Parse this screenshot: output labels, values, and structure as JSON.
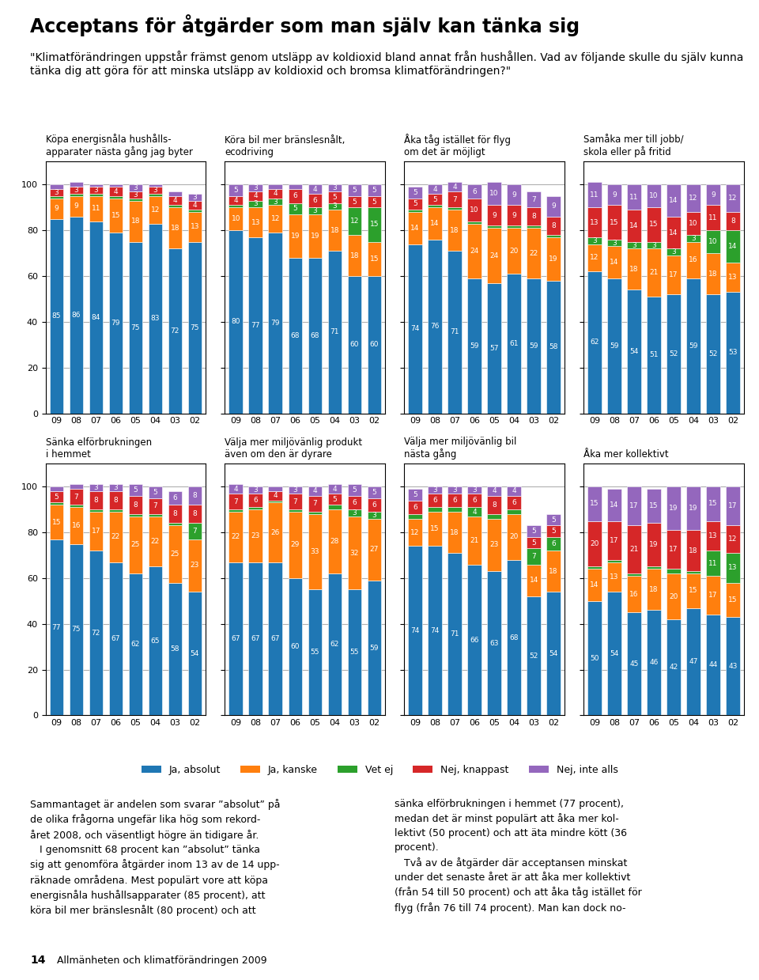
{
  "title": "Acceptans för åtgärder som man själv kan tänka sig",
  "subtitle": "\"Klimatförändringen uppstår främst genom utsläpp av koldioxid bland annat från hushållen. Vad av följande skulle du själv kunna tänka dig att göra för att minska utsläpp av koldioxid och bromsa klimatförändringen?\"",
  "annotations": [
    "Sammantaget är andelen som svarar ”absolut” på\nde olika frågorna ungefär lika hög som rekord-\nåret 2008, och väsentligt högre än tidigare år.\n   I genomsnitt 68 procent kan ”absolut” tänka\nsig att genomföra åtgärder inom 13 av de 14 upp-\nräknade områdena. Mest populärt vore att köpa\nenergisnåla hushållsapparater (85 procent), att\nköra bil mer bränslesnålt (80 procent) och att",
    "sänka elförbrukningen i hemmet (77 procent),\nmedan det är minst populärt att åka mer kol-\nlektivt (50 procent) och att äta mindre kött (36\nprocent).\n   Två av de åtgärder där acceptansen minskat\nunder det senaste året är att åka mer kollektivt\n(från 54 till 50 procent) och att åka tåg istället för\nflyg (från 76 till 74 procent). Man kan dock no-",
    "14",
    "Allmänheten och klimatförändringen 2009"
  ],
  "chart_data": [
    {
      "type": "bar",
      "stacked": true,
      "data_labels": true,
      "grid": true,
      "legend": "lower center",
      "title": "Köpa energisnåla hushålls-\napparater nästa gång jag byter",
      "categories": [
        "09",
        "08",
        "07",
        "06",
        "05",
        "04",
        "03",
        "02"
      ],
      "ylim": [
        0,
        110
      ],
      "yticks": [
        0,
        20,
        40,
        60,
        80,
        100
      ],
      "series": [
        {
          "name": "Ja, absolut",
          "color": "#1f77b4",
          "values": [
            85,
            86,
            84,
            79,
            75,
            83,
            72,
            75
          ]
        },
        {
          "name": "Ja, kanske",
          "color": "#ff7f0e",
          "values": [
            9,
            9,
            11,
            15,
            18,
            12,
            18,
            13
          ]
        },
        {
          "name": "Vet ej",
          "color": "#2ca02c",
          "values": [
            1,
            1,
            1,
            1,
            1,
            1,
            1,
            1
          ],
          "value_labels": [
            null,
            null,
            null,
            null,
            null,
            null,
            null,
            null
          ]
        },
        {
          "name": "Nej, knappast",
          "color": "#d62728",
          "values": [
            3,
            3,
            3,
            4,
            3,
            3,
            4,
            4
          ]
        },
        {
          "name": "Nej, inte alls",
          "color": "#9467bd",
          "values": [
            2,
            2,
            1,
            1,
            3,
            1,
            2,
            3
          ],
          "value_labels": [
            null,
            null,
            null,
            null,
            "3",
            null,
            null,
            "3"
          ]
        }
      ]
    },
    {
      "type": "bar",
      "stacked": true,
      "data_labels": true,
      "grid": true,
      "tick_labels": "x",
      "title": "Köra bil mer bränslesnålt,\necodriving",
      "categories": [
        "09",
        "08",
        "07",
        "06",
        "05",
        "04",
        "03",
        "02"
      ],
      "ylim": [
        0,
        110
      ],
      "yticks": [
        0,
        20,
        40,
        60,
        80,
        100
      ],
      "series": [
        {
          "name": "Ja, absolut",
          "color": "#1f77b4",
          "values": [
            80,
            77,
            79,
            68,
            68,
            71,
            60,
            60
          ]
        },
        {
          "name": "Ja, kanske",
          "color": "#ff7f0e",
          "values": [
            10,
            13,
            12,
            19,
            19,
            18,
            18,
            15
          ]
        },
        {
          "name": "Vet ej",
          "color": "#2ca02c",
          "values": [
            1,
            3,
            3,
            5,
            3,
            3,
            12,
            15
          ],
          "value_labels": [
            null,
            "3",
            "3",
            "5",
            "3",
            "3",
            "12",
            "15"
          ]
        },
        {
          "name": "Nej, knappast",
          "color": "#d62728",
          "values": [
            4,
            4,
            4,
            6,
            6,
            5,
            5,
            5
          ]
        },
        {
          "name": "Nej, inte alls",
          "color": "#9467bd",
          "values": [
            5,
            3,
            2,
            2,
            4,
            3,
            5,
            5
          ],
          "value_labels": [
            "5",
            "3",
            null,
            null,
            "4",
            "3",
            "5",
            "5"
          ]
        }
      ]
    },
    {
      "type": "bar",
      "stacked": true,
      "data_labels": true,
      "grid": true,
      "tick_labels": "x",
      "title": "Åka tåg istället för flyg\nom det är möjligt",
      "categories": [
        "09",
        "08",
        "07",
        "06",
        "05",
        "04",
        "03",
        "02"
      ],
      "ylim": [
        0,
        110
      ],
      "yticks": [
        0,
        20,
        40,
        60,
        80,
        100
      ],
      "series": [
        {
          "name": "Ja, absolut",
          "color": "#1f77b4",
          "values": [
            74,
            76,
            71,
            59,
            57,
            61,
            59,
            58
          ]
        },
        {
          "name": "Ja, kanske",
          "color": "#ff7f0e",
          "values": [
            14,
            14,
            18,
            24,
            24,
            20,
            22,
            19
          ]
        },
        {
          "name": "Vet ej",
          "color": "#2ca02c",
          "values": [
            1,
            1,
            1,
            1,
            1,
            1,
            1,
            1
          ],
          "value_labels": [
            null,
            null,
            null,
            null,
            null,
            null,
            null,
            null
          ]
        },
        {
          "name": "Nej, knappast",
          "color": "#d62728",
          "values": [
            5,
            5,
            7,
            10,
            9,
            9,
            8,
            8
          ]
        },
        {
          "name": "Nej, inte alls",
          "color": "#9467bd",
          "values": [
            5,
            4,
            4,
            6,
            10,
            9,
            7,
            9
          ]
        }
      ]
    },
    {
      "type": "bar",
      "stacked": true,
      "data_labels": true,
      "grid": true,
      "tick_labels": "x",
      "title": "Samåka mer till jobb/\nskola eller på fritid",
      "categories": [
        "09",
        "08",
        "07",
        "06",
        "05",
        "04",
        "03",
        "02"
      ],
      "ylim": [
        0,
        110
      ],
      "yticks": [
        0,
        20,
        40,
        60,
        80,
        100
      ],
      "series": [
        {
          "name": "Ja, absolut",
          "color": "#1f77b4",
          "values": [
            62,
            59,
            54,
            51,
            52,
            59,
            52,
            53
          ]
        },
        {
          "name": "Ja, kanske",
          "color": "#ff7f0e",
          "values": [
            12,
            14,
            18,
            21,
            17,
            16,
            18,
            13
          ]
        },
        {
          "name": "Vet ej",
          "color": "#2ca02c",
          "values": [
            3,
            3,
            3,
            3,
            3,
            3,
            10,
            14
          ]
        },
        {
          "name": "Nej, knappast",
          "color": "#d62728",
          "values": [
            13,
            15,
            14,
            15,
            14,
            10,
            11,
            8
          ]
        },
        {
          "name": "Nej, inte alls",
          "color": "#9467bd",
          "values": [
            11,
            9,
            11,
            10,
            14,
            12,
            9,
            12
          ]
        }
      ]
    },
    {
      "type": "bar",
      "stacked": true,
      "data_labels": true,
      "grid": true,
      "title": "Sänka elförbrukningen\ni hemmet",
      "categories": [
        "09",
        "08",
        "07",
        "06",
        "05",
        "04",
        "03",
        "02"
      ],
      "ylim": [
        0,
        110
      ],
      "yticks": [
        0,
        20,
        40,
        60,
        80,
        100
      ],
      "series": [
        {
          "name": "Ja, absolut",
          "color": "#1f77b4",
          "values": [
            77,
            75,
            72,
            67,
            62,
            65,
            58,
            54
          ]
        },
        {
          "name": "Ja, kanske",
          "color": "#ff7f0e",
          "values": [
            15,
            16,
            17,
            22,
            25,
            22,
            25,
            23
          ]
        },
        {
          "name": "Vet ej",
          "color": "#2ca02c",
          "values": [
            1,
            1,
            1,
            1,
            1,
            1,
            1,
            7
          ],
          "value_labels": [
            null,
            null,
            null,
            null,
            null,
            null,
            null,
            "7"
          ]
        },
        {
          "name": "Nej, knappast",
          "color": "#d62728",
          "values": [
            5,
            7,
            8,
            8,
            8,
            7,
            8,
            8
          ]
        },
        {
          "name": "Nej, inte alls",
          "color": "#9467bd",
          "values": [
            2,
            2,
            3,
            3,
            5,
            5,
            6,
            8
          ],
          "value_labels": [
            null,
            null,
            "3",
            "3",
            "5",
            "5",
            "6",
            "8"
          ]
        }
      ]
    },
    {
      "type": "bar",
      "stacked": true,
      "data_labels": true,
      "grid": true,
      "tick_labels": "x",
      "title": "Välja mer miljövänlig produkt\näven om den är dyrare",
      "categories": [
        "09",
        "08",
        "07",
        "06",
        "05",
        "04",
        "03",
        "02"
      ],
      "ylim": [
        0,
        110
      ],
      "yticks": [
        0,
        20,
        40,
        60,
        80,
        100
      ],
      "series": [
        {
          "name": "Ja, absolut",
          "color": "#1f77b4",
          "values": [
            67,
            67,
            67,
            60,
            55,
            62,
            55,
            59
          ]
        },
        {
          "name": "Ja, kanske",
          "color": "#ff7f0e",
          "values": [
            22,
            23,
            26,
            29,
            33,
            28,
            32,
            27
          ]
        },
        {
          "name": "Vet ej",
          "color": "#2ca02c",
          "values": [
            1,
            1,
            1,
            1,
            1,
            2,
            3,
            3
          ],
          "value_labels": [
            null,
            null,
            null,
            null,
            null,
            null,
            "3",
            "3"
          ]
        },
        {
          "name": "Nej, knappast",
          "color": "#d62728",
          "values": [
            7,
            6,
            4,
            7,
            7,
            5,
            6,
            6
          ]
        },
        {
          "name": "Nej, inte alls",
          "color": "#9467bd",
          "values": [
            4,
            3,
            2,
            3,
            4,
            4,
            5,
            5
          ],
          "value_labels": [
            "4",
            "3",
            null,
            "3",
            "4",
            "4",
            "5",
            "5"
          ]
        }
      ]
    },
    {
      "type": "bar",
      "stacked": true,
      "data_labels": true,
      "grid": true,
      "tick_labels": "x",
      "title": "Välja mer miljövänlig bil\nnästa gång",
      "categories": [
        "09",
        "08",
        "07",
        "06",
        "05",
        "04",
        "03",
        "02"
      ],
      "ylim": [
        0,
        110
      ],
      "yticks": [
        0,
        20,
        40,
        60,
        80,
        100
      ],
      "series": [
        {
          "name": "Ja, absolut",
          "color": "#1f77b4",
          "values": [
            74,
            74,
            71,
            66,
            63,
            68,
            52,
            54
          ]
        },
        {
          "name": "Ja, kanske",
          "color": "#ff7f0e",
          "values": [
            12,
            15,
            18,
            21,
            23,
            20,
            14,
            18
          ]
        },
        {
          "name": "Vet ej",
          "color": "#2ca02c",
          "values": [
            2,
            2,
            2,
            4,
            2,
            2,
            7,
            6
          ],
          "value_labels": [
            null,
            null,
            null,
            "4",
            null,
            null,
            "7",
            "6"
          ]
        },
        {
          "name": "Nej, knappast",
          "color": "#d62728",
          "values": [
            6,
            6,
            6,
            6,
            8,
            6,
            5,
            5
          ]
        },
        {
          "name": "Nej, inte alls",
          "color": "#9467bd",
          "values": [
            5,
            3,
            3,
            3,
            4,
            4,
            5,
            5
          ]
        }
      ]
    },
    {
      "type": "bar",
      "stacked": true,
      "data_labels": true,
      "grid": true,
      "tick_labels": "x",
      "title": "Åka mer kollektivt",
      "categories": [
        "09",
        "08",
        "07",
        "06",
        "05",
        "04",
        "03",
        "02"
      ],
      "ylim": [
        0,
        110
      ],
      "yticks": [
        0,
        20,
        40,
        60,
        80,
        100
      ],
      "series": [
        {
          "name": "Ja, absolut",
          "color": "#1f77b4",
          "values": [
            50,
            54,
            45,
            46,
            42,
            47,
            44,
            43
          ]
        },
        {
          "name": "Ja, kanske",
          "color": "#ff7f0e",
          "values": [
            14,
            13,
            16,
            18,
            20,
            15,
            17,
            15
          ]
        },
        {
          "name": "Vet ej",
          "color": "#2ca02c",
          "values": [
            1,
            1,
            1,
            1,
            2,
            1,
            11,
            13
          ],
          "value_labels": [
            null,
            null,
            null,
            null,
            null,
            null,
            "11",
            "13"
          ]
        },
        {
          "name": "Nej, knappast",
          "color": "#d62728",
          "values": [
            20,
            17,
            21,
            19,
            17,
            18,
            13,
            12
          ]
        },
        {
          "name": "Nej, inte alls",
          "color": "#9467bd",
          "values": [
            15,
            14,
            17,
            15,
            19,
            19,
            15,
            17
          ]
        }
      ]
    }
  ]
}
